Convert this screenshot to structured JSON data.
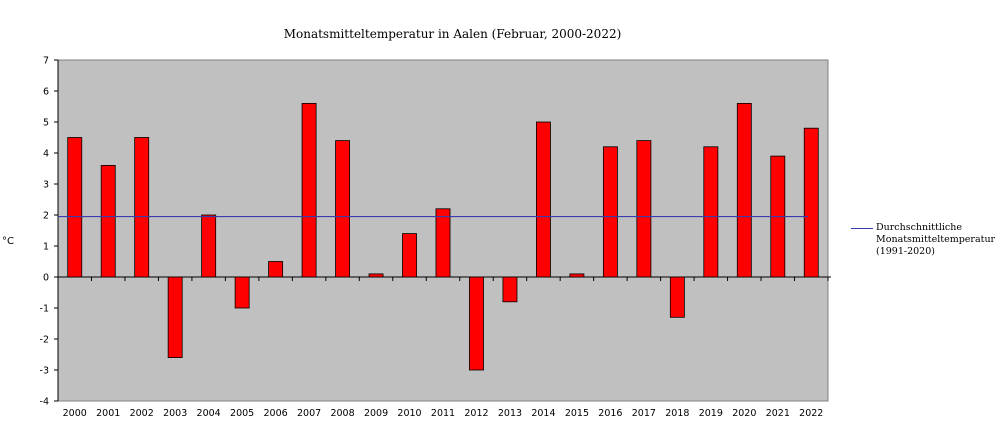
{
  "chart_data": {
    "type": "bar",
    "title": "Monatsmitteltemperatur in Aalen (Februar, 2000-2022)",
    "xlabel": "",
    "ylabel": "°C",
    "categories": [
      "2000",
      "2001",
      "2002",
      "2003",
      "2004",
      "2005",
      "2006",
      "2007",
      "2008",
      "2009",
      "2010",
      "2011",
      "2012",
      "2013",
      "2014",
      "2015",
      "2016",
      "2017",
      "2018",
      "2019",
      "2020",
      "2021",
      "2022"
    ],
    "series": [
      {
        "values": [
          4.5,
          3.6,
          4.5,
          -2.6,
          2.0,
          -1.0,
          0.5,
          5.6,
          4.4,
          0.1,
          1.4,
          2.2,
          -3.0,
          -0.8,
          5.0,
          0.1,
          4.2,
          4.4,
          -1.3,
          4.2,
          5.6,
          3.9,
          4.8
        ],
        "color": "#ff0000"
      }
    ],
    "reference_line": {
      "name": "Durchschnittliche Monatsmitteltemperatur (1991-2020)",
      "value": 1.95,
      "color": "#3b3bb0"
    },
    "ylim": [
      -4,
      7
    ],
    "yticks": [
      7,
      6,
      5,
      4,
      3,
      2,
      1,
      0,
      -1,
      -2,
      -3,
      -4
    ],
    "plot_background": "#c0c0c0",
    "grid": false,
    "legend_position": "right"
  }
}
